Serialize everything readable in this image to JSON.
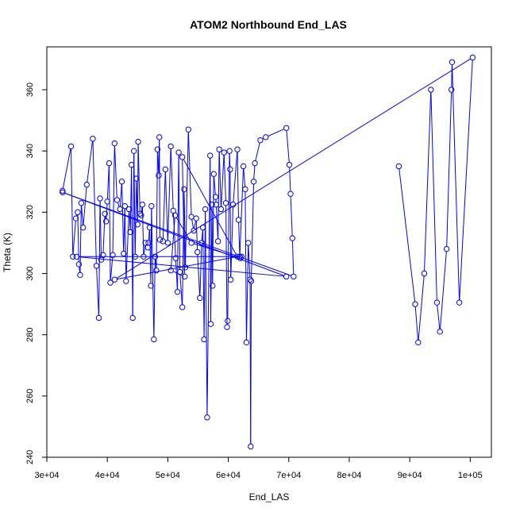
{
  "chart_data": {
    "type": "line",
    "title": "ATOM2 Northbound End_LAS",
    "xlabel": "End_LAS",
    "ylabel": "Theta (K)",
    "xlim": [
      30000,
      103500
    ],
    "ylim": [
      240,
      374
    ],
    "x_ticks": [
      30000,
      40000,
      50000,
      60000,
      70000,
      80000,
      90000,
      100000
    ],
    "x_tick_labels": [
      "3e+04",
      "4e+04",
      "5e+04",
      "6e+04",
      "7e+04",
      "8e+04",
      "9e+04",
      "1e+05"
    ],
    "y_ticks": [
      240,
      260,
      280,
      300,
      320,
      340,
      360
    ],
    "y_tick_labels": [
      "240",
      "260",
      "280",
      "300",
      "320",
      "340",
      "360"
    ],
    "grid": false,
    "series_color": "#0000ff",
    "series": [
      {
        "marker": "open-circle",
        "points": [
          [
            32600,
            327
          ],
          [
            34000,
            341.5
          ],
          [
            34300,
            305.5
          ],
          [
            34800,
            318
          ],
          [
            35100,
            320
          ],
          [
            35300,
            303
          ],
          [
            35500,
            299.5
          ],
          [
            35700,
            323
          ],
          [
            36000,
            315
          ],
          [
            36600,
            329
          ],
          [
            37600,
            344
          ],
          [
            38200,
            302.5
          ],
          [
            38600,
            285.5
          ],
          [
            38800,
            324.5
          ],
          [
            39000,
            304.5
          ],
          [
            39300,
            306
          ],
          [
            39600,
            319.5
          ],
          [
            39800,
            317
          ],
          [
            40000,
            323.5
          ],
          [
            40300,
            336
          ],
          [
            40500,
            297
          ],
          [
            40900,
            306
          ],
          [
            41200,
            342.5
          ],
          [
            41600,
            324
          ],
          [
            42100,
            321
          ],
          [
            42400,
            330
          ],
          [
            42700,
            306.5
          ],
          [
            42900,
            322
          ],
          [
            43100,
            297.5
          ],
          [
            43600,
            321
          ],
          [
            43800,
            313.5
          ],
          [
            44000,
            335.5
          ],
          [
            44200,
            285.5
          ],
          [
            44400,
            340
          ],
          [
            44600,
            305.5
          ],
          [
            44800,
            331
          ],
          [
            45000,
            316
          ],
          [
            45100,
            343
          ],
          [
            45400,
            319.5
          ],
          [
            45600,
            319
          ],
          [
            45800,
            322.5
          ],
          [
            46000,
            305.5
          ],
          [
            46300,
            310
          ],
          [
            46700,
            308.5
          ],
          [
            46800,
            310
          ],
          [
            47000,
            315
          ],
          [
            47200,
            296
          ],
          [
            47300,
            322
          ],
          [
            47700,
            278.5
          ],
          [
            47900,
            305.5
          ],
          [
            48100,
            301
          ],
          [
            48300,
            340.5
          ],
          [
            48500,
            332
          ],
          [
            48600,
            344.5
          ],
          [
            48700,
            311
          ],
          [
            49200,
            310.5
          ],
          [
            49600,
            334
          ],
          [
            50000,
            310
          ],
          [
            50500,
            341.5
          ],
          [
            50900,
            320.5
          ],
          [
            51300,
            305
          ],
          [
            51600,
            294
          ],
          [
            51800,
            339.5
          ],
          [
            52000,
            300.5
          ],
          [
            52400,
            289
          ],
          [
            52700,
            327.5
          ],
          [
            52900,
            302
          ],
          [
            53400,
            347
          ],
          [
            53900,
            318.5
          ],
          [
            54300,
            314
          ],
          [
            54700,
            318
          ],
          [
            54900,
            307
          ],
          [
            55300,
            292
          ],
          [
            55600,
            310
          ],
          [
            55800,
            315
          ],
          [
            56000,
            278.5
          ],
          [
            56200,
            321
          ],
          [
            56500,
            253
          ],
          [
            57000,
            338.5
          ],
          [
            57100,
            283.5
          ],
          [
            57300,
            322.5
          ],
          [
            57400,
            296
          ],
          [
            57600,
            332.5
          ],
          [
            57900,
            325
          ],
          [
            58000,
            322.5
          ],
          [
            58300,
            310.5
          ],
          [
            58500,
            340.5
          ],
          [
            58800,
            321
          ],
          [
            59300,
            339.5
          ],
          [
            59600,
            323
          ],
          [
            59800,
            282.5
          ],
          [
            59900,
            284.5
          ],
          [
            60200,
            340
          ],
          [
            60300,
            334
          ],
          [
            60400,
            298
          ],
          [
            60800,
            322.5
          ],
          [
            61500,
            340.5
          ],
          [
            61700,
            317.5
          ],
          [
            61900,
            305.5
          ],
          [
            62500,
            335
          ],
          [
            62800,
            327.5
          ],
          [
            63000,
            277.5
          ],
          [
            63300,
            310
          ],
          [
            63600,
            298
          ],
          [
            63700,
            243.5
          ],
          [
            63800,
            297.5
          ],
          [
            64200,
            330
          ],
          [
            64400,
            336
          ],
          [
            65300,
            343.5
          ],
          [
            66200,
            344.5
          ],
          [
            69600,
            347.5
          ],
          [
            70100,
            335.5
          ],
          [
            70300,
            326
          ],
          [
            70600,
            311.5
          ],
          [
            70800,
            299
          ],
          [
            32600,
            326.5
          ],
          [
            69600,
            299
          ],
          [
            34900,
            305.5
          ],
          [
            62200,
            305.5
          ],
          [
            62000,
            305
          ],
          [
            53900,
            310
          ],
          [
            51200,
            319
          ],
          [
            50500,
            301
          ],
          [
            52800,
            299
          ],
          [
            52400,
            338
          ],
          [
            61500,
            305.5
          ],
          [
            41200,
            298
          ],
          [
            100400,
            370.5
          ],
          [
            98200,
            290.5
          ],
          [
            97000,
            369
          ],
          [
            96900,
            360
          ],
          [
            96100,
            308
          ],
          [
            95000,
            281
          ],
          [
            94500,
            290.5
          ],
          [
            93500,
            360
          ],
          [
            92400,
            300
          ],
          [
            91400,
            277.5
          ],
          [
            90900,
            290
          ],
          [
            88200,
            335
          ]
        ]
      }
    ]
  }
}
